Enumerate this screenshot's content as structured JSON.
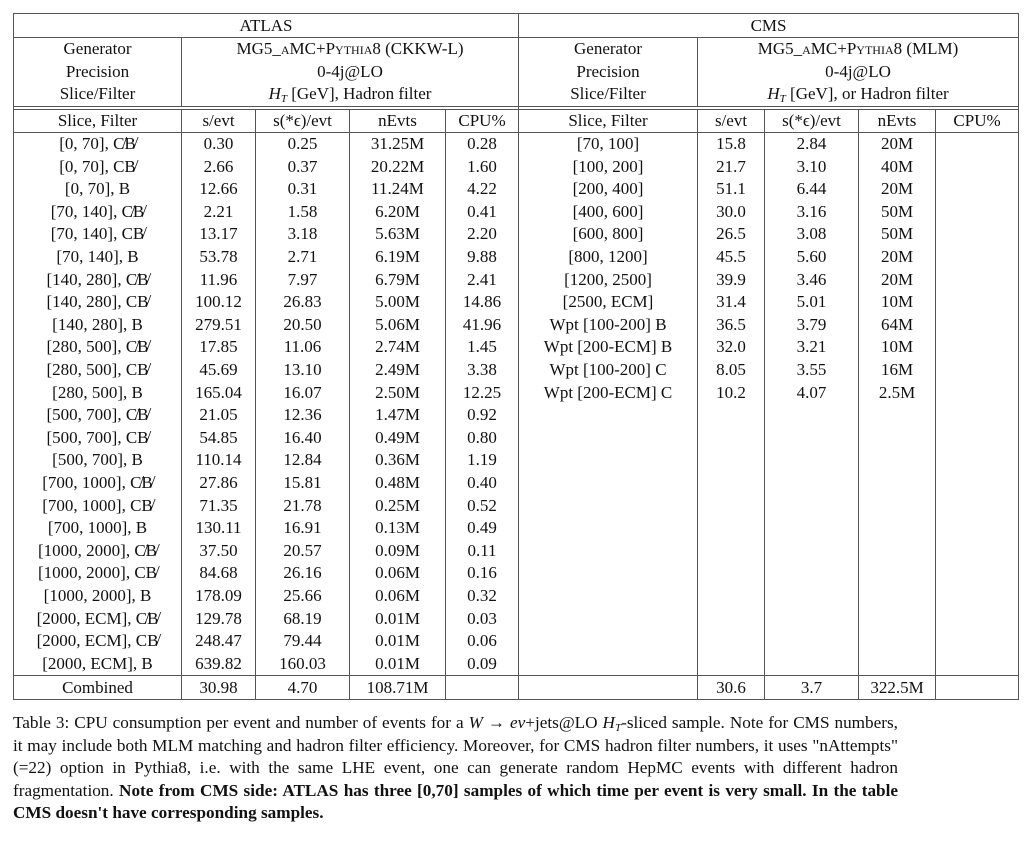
{
  "table": {
    "atlas": {
      "title": "ATLAS",
      "generator_label": "Generator",
      "generator": "MG5_aMC+Pythia8 (CKKW-L)",
      "precision_label": "Precision",
      "precision": "0-4j@LO",
      "slice_label": "Slice/Filter",
      "slice_ht": "H",
      "slice_ht_sub": "T",
      "slice_rest": " [GeV], Hadron filter",
      "columns": [
        "Slice, Filter",
        "s/evt",
        "s(*ϵ)/evt",
        "nEvts",
        "CPU%"
      ],
      "rows": [
        [
          "[0, 70], C̸B̸",
          "0.30",
          "0.25",
          "31.25M",
          "0.28"
        ],
        [
          "[0, 70], CB̸",
          "2.66",
          "0.37",
          "20.22M",
          "1.60"
        ],
        [
          "[0, 70], B",
          "12.66",
          "0.31",
          "11.24M",
          "4.22"
        ],
        [
          "[70, 140], C̸B̸",
          "2.21",
          "1.58",
          "6.20M",
          "0.41"
        ],
        [
          "[70, 140], CB̸",
          "13.17",
          "3.18",
          "5.63M",
          "2.20"
        ],
        [
          "[70, 140], B",
          "53.78",
          "2.71",
          "6.19M",
          "9.88"
        ],
        [
          "[140, 280], C̸B̸",
          "11.96",
          "7.97",
          "6.79M",
          "2.41"
        ],
        [
          "[140, 280], CB̸",
          "100.12",
          "26.83",
          "5.00M",
          "14.86"
        ],
        [
          "[140, 280], B",
          "279.51",
          "20.50",
          "5.06M",
          "41.96"
        ],
        [
          "[280, 500], C̸B̸",
          "17.85",
          "11.06",
          "2.74M",
          "1.45"
        ],
        [
          "[280, 500], CB̸",
          "45.69",
          "13.10",
          "2.49M",
          "3.38"
        ],
        [
          "[280, 500], B",
          "165.04",
          "16.07",
          "2.50M",
          "12.25"
        ],
        [
          "[500, 700], C̸B̸",
          "21.05",
          "12.36",
          "1.47M",
          "0.92"
        ],
        [
          "[500, 700], CB̸",
          "54.85",
          "16.40",
          "0.49M",
          "0.80"
        ],
        [
          "[500, 700], B",
          "110.14",
          "12.84",
          "0.36M",
          "1.19"
        ],
        [
          "[700, 1000], C̸B̸",
          "27.86",
          "15.81",
          "0.48M",
          "0.40"
        ],
        [
          "[700, 1000], CB̸",
          "71.35",
          "21.78",
          "0.25M",
          "0.52"
        ],
        [
          "[700, 1000], B",
          "130.11",
          "16.91",
          "0.13M",
          "0.49"
        ],
        [
          "[1000, 2000], C̸B̸",
          "37.50",
          "20.57",
          "0.09M",
          "0.11"
        ],
        [
          "[1000, 2000], CB̸",
          "84.68",
          "26.16",
          "0.06M",
          "0.16"
        ],
        [
          "[1000, 2000], B",
          "178.09",
          "25.66",
          "0.06M",
          "0.32"
        ],
        [
          "[2000, ECM], C̸B̸",
          "129.78",
          "68.19",
          "0.01M",
          "0.03"
        ],
        [
          "[2000, ECM], CB̸",
          "248.47",
          "79.44",
          "0.01M",
          "0.06"
        ],
        [
          "[2000, ECM], B",
          "639.82",
          "160.03",
          "0.01M",
          "0.09"
        ]
      ],
      "combined": [
        "Combined",
        "30.98",
        "4.70",
        "108.71M",
        ""
      ]
    },
    "cms": {
      "title": "CMS",
      "generator_label": "Generator",
      "generator": "MG5_aMC+Pythia8 (MLM)",
      "precision_label": "Precision",
      "precision": "0-4j@LO",
      "slice_label": "Slice/Filter",
      "slice_ht": "H",
      "slice_ht_sub": "T",
      "slice_rest": " [GeV], or Hadron filter",
      "columns": [
        "Slice, Filter",
        "s/evt",
        "s(*ϵ)/evt",
        "nEvts",
        "CPU%"
      ],
      "rows": [
        [
          "[70, 100]",
          "15.8",
          "2.84",
          "20M",
          ""
        ],
        [
          "[100, 200]",
          "21.7",
          "3.10",
          "40M",
          ""
        ],
        [
          "[200, 400]",
          "51.1",
          "6.44",
          "20M",
          ""
        ],
        [
          "[400, 600]",
          "30.0",
          "3.16",
          "50M",
          ""
        ],
        [
          "[600, 800]",
          "26.5",
          "3.08",
          "50M",
          ""
        ],
        [
          "[800, 1200]",
          "45.5",
          "5.60",
          "20M",
          ""
        ],
        [
          "[1200, 2500]",
          "39.9",
          "3.46",
          "20M",
          ""
        ],
        [
          "[2500, ECM]",
          "31.4",
          "5.01",
          "10M",
          ""
        ],
        [
          "Wpt [100-200] B",
          "36.5",
          "3.79",
          "64M",
          ""
        ],
        [
          "Wpt [200-ECM] B",
          "32.0",
          "3.21",
          "10M",
          ""
        ],
        [
          "Wpt [100-200] C",
          "8.05",
          "3.55",
          "16M",
          ""
        ],
        [
          "Wpt [200-ECM] C",
          "10.2",
          "4.07",
          "2.5M",
          ""
        ]
      ],
      "combined": [
        "",
        "30.6",
        "3.7",
        "322.5M",
        ""
      ]
    }
  },
  "caption": {
    "p1": "Table 3:   CPU consumption per event and number of events for a ",
    "math_w": "W → eν",
    "p2": "+jets@LO ",
    "ht": "H",
    "ht_sub": "T",
    "p3": "-sliced sample. Note for CMS numbers, it may include both MLM matching and hadron filter efficiency. Moreover, for CMS hadron filter numbers, it uses \"nAttempts\"(=22) option in Pythia8, i.e. with the same LHE event, one can generate random HepMC events with different hadron fragmentation. ",
    "bold": "Note from CMS side: ATLAS has three [0,70] samples of which time per event is very small. In the table CMS doesn't have corresponding samples."
  }
}
